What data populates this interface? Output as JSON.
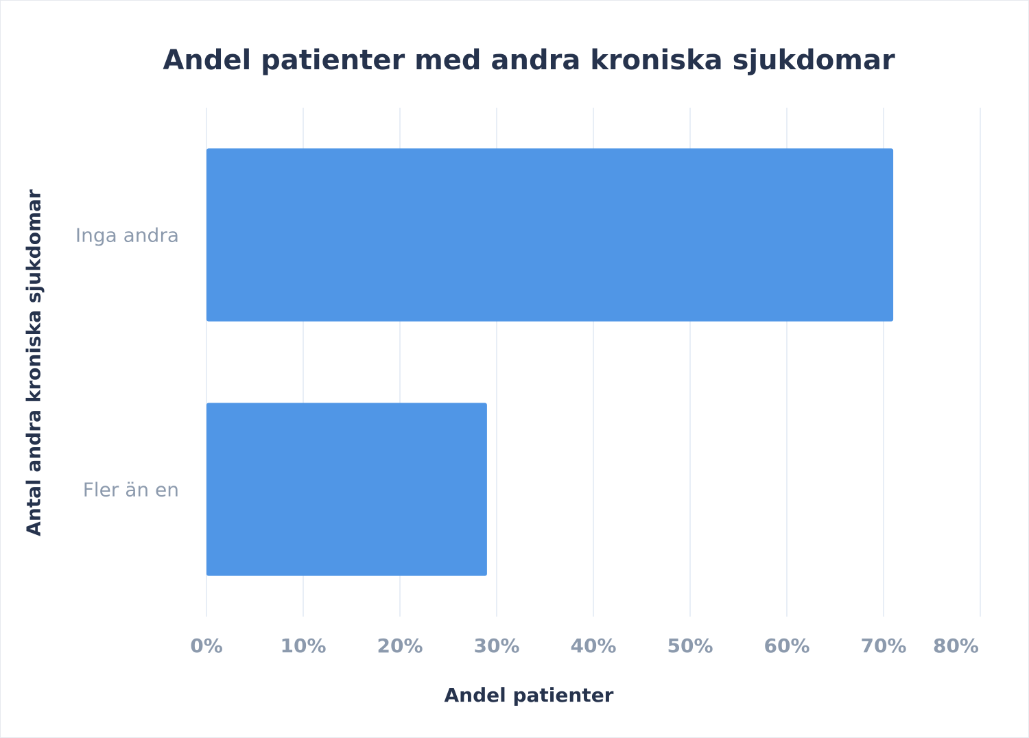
{
  "chart_data": {
    "type": "bar",
    "orientation": "horizontal",
    "title": "Andel patienter med andra kroniska sjukdomar",
    "xlabel": "Andel patienter",
    "ylabel": "Antal andra kroniska sjukdomar",
    "categories": [
      "Inga andra",
      "Fler än en"
    ],
    "values": [
      71,
      29
    ],
    "xlim": [
      0,
      80
    ],
    "xticks": [
      0,
      10,
      20,
      30,
      40,
      50,
      60,
      70,
      80
    ],
    "xtick_labels": [
      "0%",
      "10%",
      "20%",
      "30%",
      "40%",
      "50%",
      "60%",
      "70%",
      "80%"
    ],
    "grid": true,
    "legend": "none",
    "bar_color": "#5096e6",
    "grid_color": "#e8eef6"
  }
}
